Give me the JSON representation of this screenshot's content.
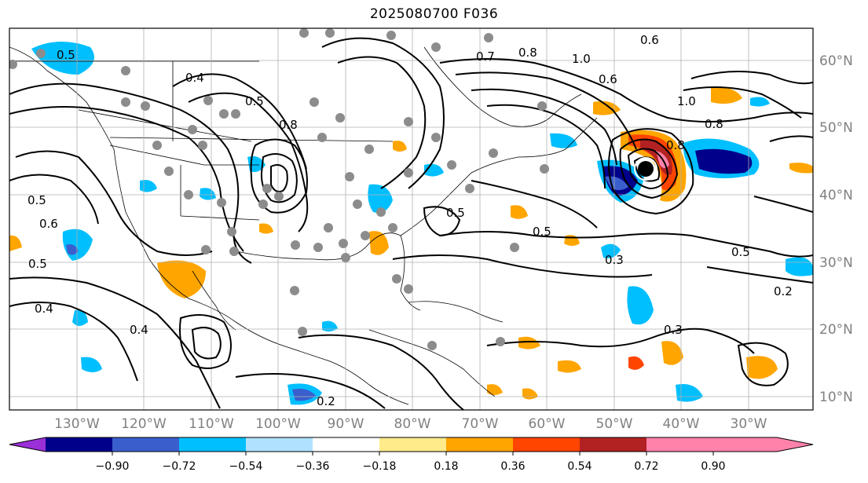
{
  "title": "2025080700 F036",
  "axes": {
    "longitude_labels": [
      "130°W",
      "120°W",
      "110°W",
      "100°W",
      "90°W",
      "80°W",
      "70°W",
      "60°W",
      "50°W",
      "40°W",
      "30°W"
    ],
    "latitude_labels": [
      "60°N",
      "50°N",
      "40°N",
      "30°N",
      "20°N",
      "10°N"
    ]
  },
  "colorbar": {
    "tick_labels": [
      "−0.90",
      "−0.72",
      "−0.54",
      "−0.36",
      "−0.18",
      "0.18",
      "0.36",
      "0.54",
      "0.72",
      "0.90"
    ],
    "colors": [
      "#9b30d9",
      "#00008b",
      "#3a5fcd",
      "#00bfff",
      "#b0e2ff",
      "#ffffff",
      "#ffeb8a",
      "#ffa500",
      "#ff4500",
      "#b22222",
      "#ff82ab"
    ]
  },
  "contour_labels": [
    "0.5",
    "0.4",
    "0.5",
    "0.8",
    "0.7",
    "0.8",
    "1.0",
    "0.6",
    "0.6",
    "1.0",
    "0.8",
    "0.5",
    "0.6",
    "0.5",
    "0.5",
    "0.4",
    "0.5",
    "0.3",
    "0.4",
    "0.2",
    "0.3",
    "0.2",
    "0.8",
    "0.5"
  ],
  "marker_colors": {
    "station_dots": "#8c8c8c",
    "storm_center": "#000000"
  }
}
